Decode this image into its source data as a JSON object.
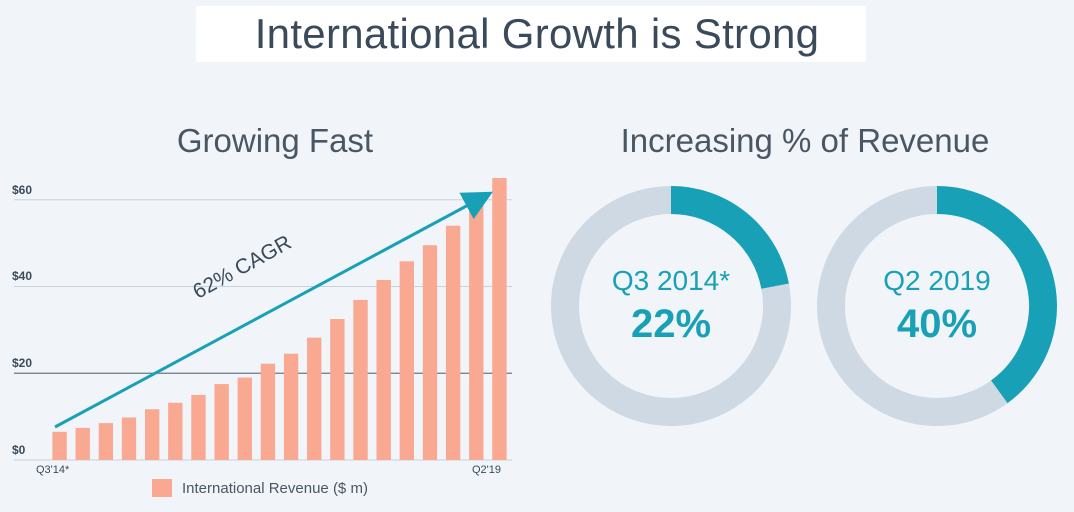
{
  "title": "International Growth is Strong",
  "left_panel": {
    "title": "Growing Fast",
    "annotation": "62% CAGR"
  },
  "right_panel": {
    "title": "Increasing % of Revenue"
  },
  "colors": {
    "bar": "#f9a891",
    "accent": "#18a1b6",
    "ring_track": "#cfd9e3",
    "arrow": "#18a1b6"
  },
  "chart_data": [
    {
      "type": "bar",
      "title": "Growing Fast",
      "categories": [
        "Q3'14*",
        "",
        "",
        "",
        "",
        "",
        "",
        "",
        "",
        "",
        "",
        "",
        "",
        "",
        "",
        "",
        "",
        "",
        "",
        "Q2'19"
      ],
      "series": [
        {
          "name": "International Revenue ($ m)",
          "values": [
            6.5,
            7.4,
            8.5,
            9.8,
            11.7,
            13.2,
            15.0,
            17.5,
            19.0,
            22.2,
            24.5,
            28.2,
            32.5,
            36.9,
            41.5,
            45.8,
            49.5,
            54.0,
            59.5,
            65.0
          ]
        }
      ],
      "yticks": [
        "$0",
        "$20",
        "$40",
        "$60"
      ],
      "ytick_values": [
        0,
        20,
        40,
        60
      ],
      "ylim": [
        0,
        65
      ],
      "xlabel": "",
      "ylabel": "",
      "grid": true,
      "legend": "bottom"
    },
    {
      "type": "pie",
      "title": "Increasing % of Revenue",
      "series": [
        {
          "name": "Q3 2014*",
          "values": [
            22,
            78
          ]
        },
        {
          "name": "Q2 2019",
          "values": [
            40,
            60
          ]
        }
      ]
    }
  ],
  "donuts": [
    {
      "label": "Q3 2014*",
      "value_text": "22%",
      "percent": 22
    },
    {
      "label": "Q2 2019",
      "value_text": "40%",
      "percent": 40
    }
  ]
}
